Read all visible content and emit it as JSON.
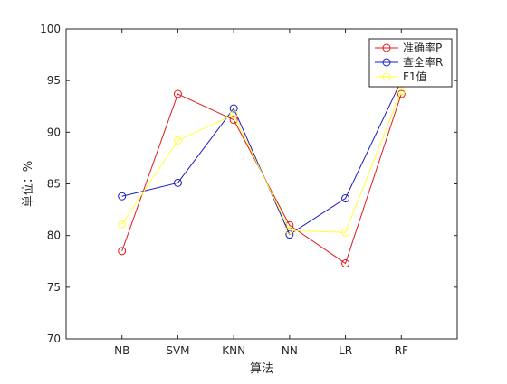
{
  "chart_data": {
    "type": "line",
    "xlabel": "算法",
    "ylabel": "单位：%",
    "categories": [
      "NB",
      "SVM",
      "KNN",
      "NN",
      "LR",
      "RF"
    ],
    "ylim": [
      70,
      100
    ],
    "yticks": [
      70,
      75,
      80,
      85,
      90,
      95,
      100
    ],
    "grid": false,
    "legend_position": "top-right",
    "series": [
      {
        "name": "准确率P",
        "color": "#e31a1c",
        "values": [
          78.5,
          93.7,
          91.2,
          81.0,
          77.3,
          93.7
        ]
      },
      {
        "name": "查全率R",
        "color": "#1a1ac8",
        "values": [
          83.8,
          85.1,
          92.3,
          80.1,
          83.6,
          95.0
        ]
      },
      {
        "name": "F1值",
        "color": "#ffff33",
        "values": [
          81.1,
          89.2,
          91.7,
          80.5,
          80.3,
          94.0
        ]
      }
    ]
  }
}
